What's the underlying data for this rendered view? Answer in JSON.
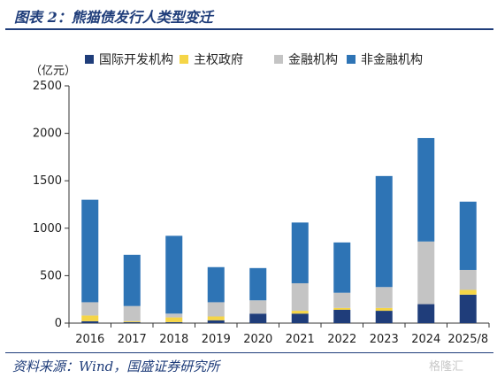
{
  "header": {
    "title": "图表 2：熊猫债发行人类型变迁"
  },
  "footer": {
    "source": "资料来源：Wind，国盛证券研究所",
    "watermark": "格隆汇"
  },
  "chart_data": {
    "type": "bar",
    "stacked": true,
    "unit_label": "（亿元）",
    "categories": [
      "2016",
      "2017",
      "2018",
      "2019",
      "2020",
      "2021",
      "2022",
      "2023",
      "2024",
      "2025/8"
    ],
    "ylim": [
      0,
      2500
    ],
    "yticks": [
      0,
      500,
      1000,
      1500,
      2000,
      2500
    ],
    "grid": false,
    "legend": "top",
    "series": [
      {
        "name": "国际开发机构",
        "color": "#1f3d7a",
        "values": [
          20,
          10,
          10,
          30,
          100,
          100,
          140,
          130,
          200,
          300
        ]
      },
      {
        "name": "主权政府",
        "color": "#f5d547",
        "values": [
          60,
          10,
          50,
          40,
          0,
          30,
          20,
          30,
          0,
          50
        ]
      },
      {
        "name": "金融机构",
        "color": "#c4c4c4",
        "values": [
          140,
          160,
          40,
          150,
          140,
          290,
          160,
          220,
          660,
          210
        ]
      },
      {
        "name": "非金融机构",
        "color": "#2e74b5",
        "values": [
          1080,
          540,
          820,
          370,
          340,
          640,
          530,
          1170,
          1090,
          720
        ]
      }
    ]
  }
}
